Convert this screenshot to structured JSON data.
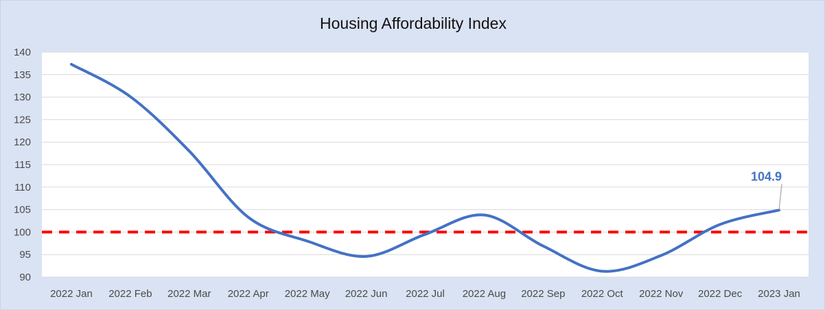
{
  "chart_data": {
    "type": "line",
    "title": "Housing Affordability Index",
    "xlabel": "",
    "ylabel": "",
    "categories": [
      "2022 Jan",
      "2022 Feb",
      "2022 Mar",
      "2022 Apr",
      "2022 May",
      "2022 Jun",
      "2022 Jul",
      "2022 Aug",
      "2022 Sep",
      "2022 Oct",
      "2022 Nov",
      "2022 Dec",
      "2023 Jan"
    ],
    "series": [
      {
        "values": [
          137.3,
          130.1,
          118.0,
          103.3,
          98.0,
          94.6,
          99.5,
          103.8,
          96.9,
          91.3,
          94.8,
          101.7,
          104.9
        ],
        "color": "#4472c4"
      }
    ],
    "yticks": [
      "90",
      "95",
      "100",
      "105",
      "110",
      "115",
      "120",
      "125",
      "130",
      "135",
      "140"
    ],
    "ylim": [
      90,
      140
    ],
    "grid": true,
    "legend": "none",
    "reference_line": {
      "value": 100,
      "color": "#ff0000",
      "style": "dashed"
    },
    "annotation": {
      "category": "2023 Jan",
      "text": "104.9",
      "color": "#4472c4"
    }
  }
}
